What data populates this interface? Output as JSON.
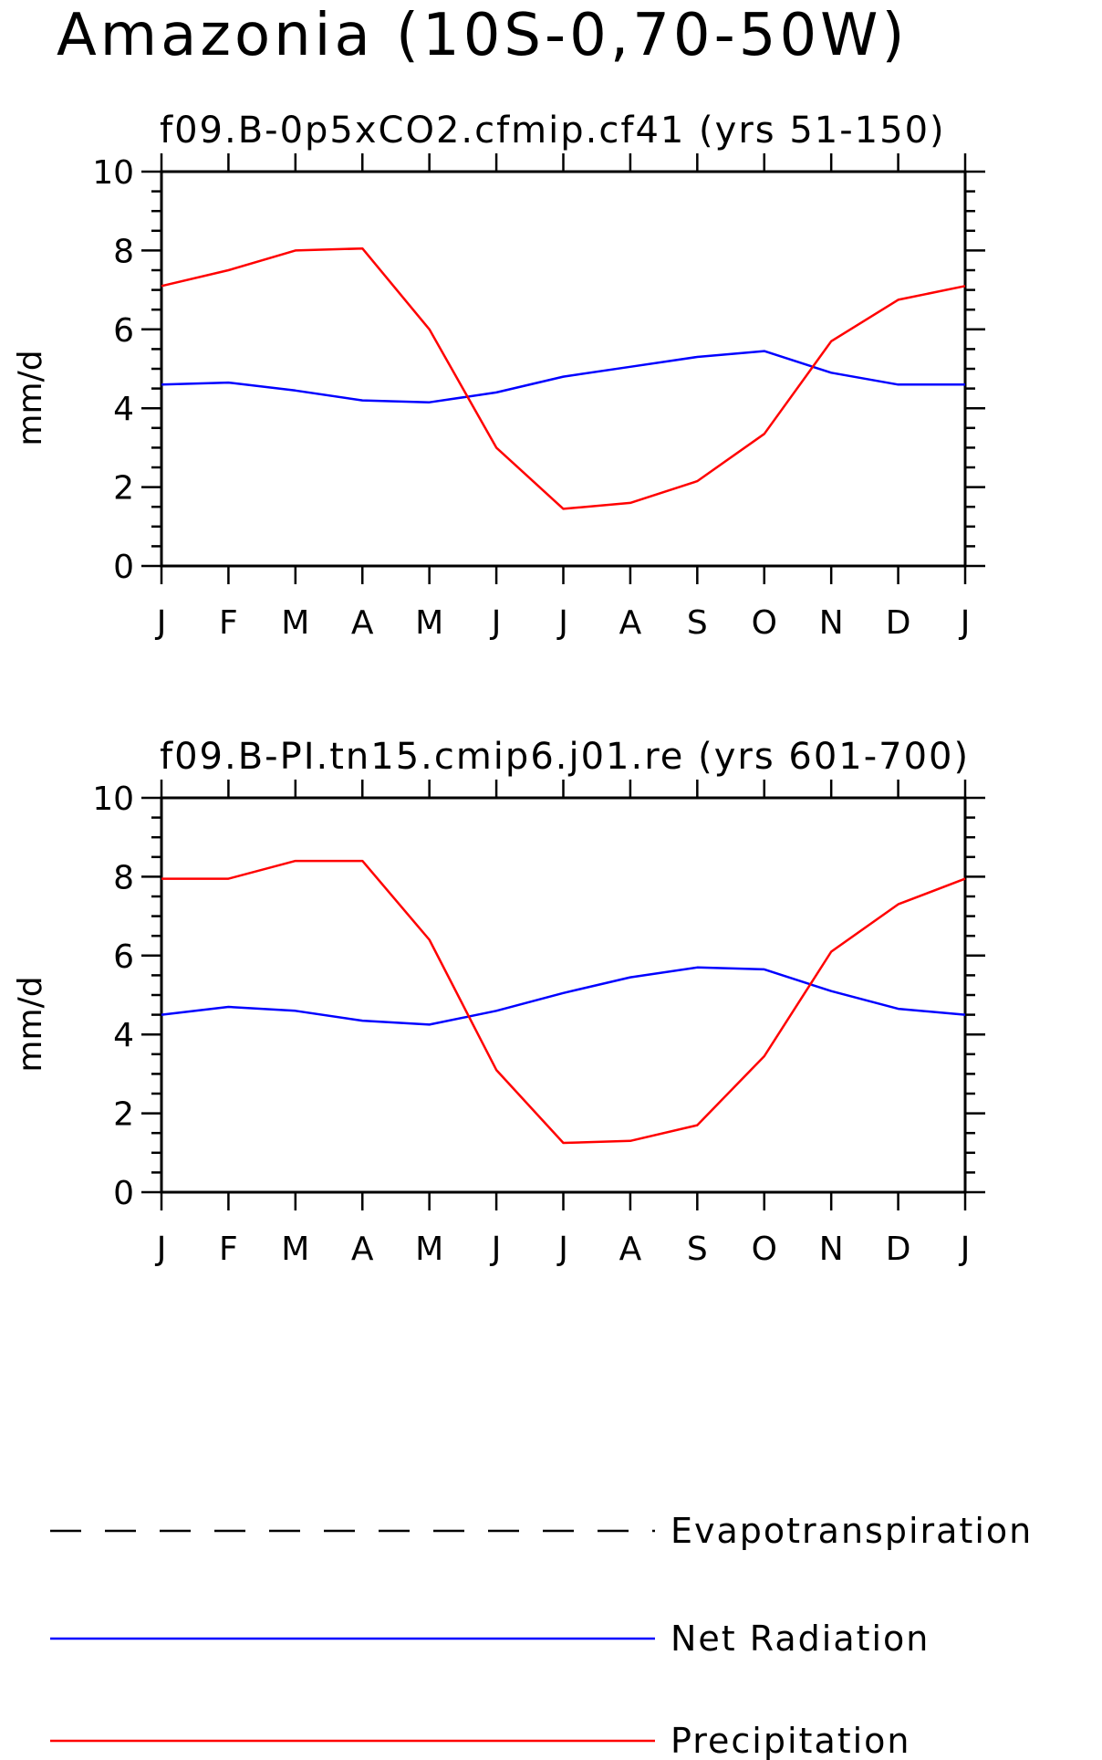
{
  "title": "Amazonia (10S-0,70-50W)",
  "chart_data": [
    {
      "type": "line",
      "title": "f09.B-0p5xCO2.cfmip.cf41 (yrs 51-150)",
      "ylabel": "mm/d",
      "ylim": [
        0,
        10
      ],
      "yticks": [
        "0",
        "2",
        "4",
        "6",
        "8",
        "10"
      ],
      "categories": [
        "J",
        "F",
        "M",
        "A",
        "M",
        "J",
        "J",
        "A",
        "S",
        "O",
        "N",
        "D",
        "J"
      ],
      "series": [
        {
          "name": "Net Radiation",
          "color": "#0000ff",
          "values": [
            4.6,
            4.65,
            4.45,
            4.2,
            4.15,
            4.4,
            4.8,
            5.05,
            5.3,
            5.45,
            4.9,
            4.6,
            4.6
          ]
        },
        {
          "name": "Precipitation",
          "color": "#ff0000",
          "values": [
            7.1,
            7.5,
            8.0,
            8.05,
            6.0,
            3.0,
            1.45,
            1.6,
            2.15,
            3.35,
            5.7,
            6.75,
            7.1
          ]
        }
      ]
    },
    {
      "type": "line",
      "title": "f09.B-PI.tn15.cmip6.j01.re (yrs 601-700)",
      "ylabel": "mm/d",
      "ylim": [
        0,
        10
      ],
      "yticks": [
        "0",
        "2",
        "4",
        "6",
        "8",
        "10"
      ],
      "categories": [
        "J",
        "F",
        "M",
        "A",
        "M",
        "J",
        "J",
        "A",
        "S",
        "O",
        "N",
        "D",
        "J"
      ],
      "series": [
        {
          "name": "Net Radiation",
          "color": "#0000ff",
          "values": [
            4.5,
            4.7,
            4.6,
            4.35,
            4.25,
            4.6,
            5.05,
            5.45,
            5.7,
            5.65,
            5.1,
            4.65,
            4.5
          ]
        },
        {
          "name": "Precipitation",
          "color": "#ff0000",
          "values": [
            7.95,
            7.95,
            8.4,
            8.4,
            6.4,
            3.1,
            1.25,
            1.3,
            1.7,
            3.45,
            6.1,
            7.3,
            7.95
          ]
        }
      ]
    }
  ],
  "legend": [
    {
      "label": "Evapotranspiration",
      "color": "#000000",
      "style": "dashed"
    },
    {
      "label": "Net Radiation",
      "color": "#0000ff",
      "style": "solid"
    },
    {
      "label": "Precipitation",
      "color": "#ff0000",
      "style": "solid"
    }
  ]
}
